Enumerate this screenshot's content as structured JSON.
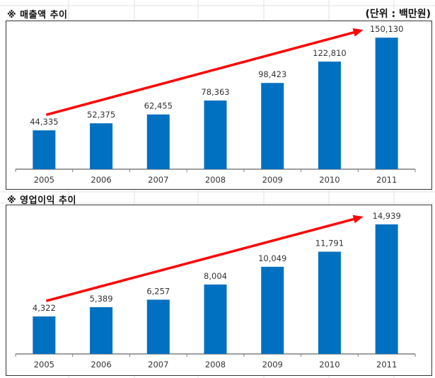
{
  "header": {
    "unit_label": "(단위 : 백만원)"
  },
  "chart_data": [
    {
      "type": "bar",
      "title": "※ 매출액 추이",
      "categories": [
        "2005",
        "2006",
        "2007",
        "2008",
        "2009",
        "2010",
        "2011"
      ],
      "values": [
        44335,
        52375,
        62455,
        78363,
        98423,
        122810,
        150130
      ],
      "value_labels": [
        "44,335",
        "52,375",
        "62,455",
        "78,363",
        "98,423",
        "122,810",
        "150,130"
      ],
      "xlabel": "",
      "ylabel": "",
      "ylim": [
        0,
        160000
      ],
      "grid": false,
      "legend": "none",
      "annotation": "trend-arrow",
      "bar_color": "#0070C0",
      "arrow_color": "#FF0000"
    },
    {
      "type": "bar",
      "title": "※ 영업이익 추이",
      "categories": [
        "2005",
        "2006",
        "2007",
        "2008",
        "2009",
        "2010",
        "2011"
      ],
      "values": [
        4322,
        5389,
        6257,
        8004,
        10049,
        11791,
        14939
      ],
      "value_labels": [
        "4,322",
        "5,389",
        "6,257",
        "8,004",
        "10,049",
        "11,791",
        "14,939"
      ],
      "xlabel": "",
      "ylabel": "",
      "ylim": [
        0,
        16000
      ],
      "grid": false,
      "legend": "none",
      "annotation": "trend-arrow",
      "bar_color": "#0070C0",
      "arrow_color": "#FF0000"
    }
  ]
}
